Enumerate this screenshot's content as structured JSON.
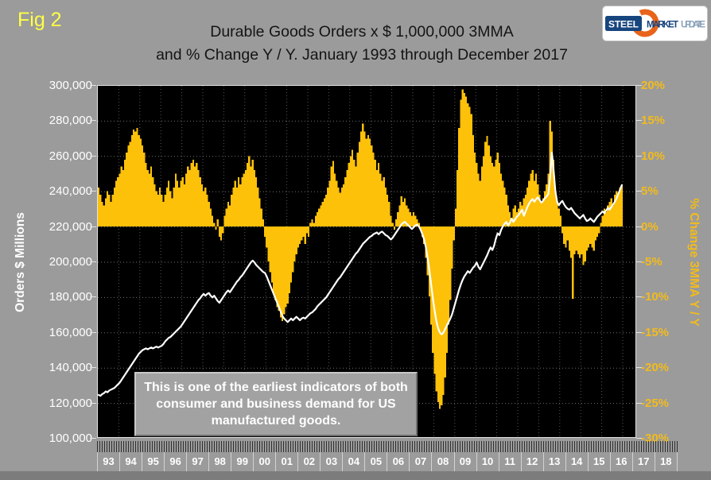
{
  "fig_label": "Fig 2",
  "title_line1": "Durable Goods Orders x $ 1,000,000 3MMA",
  "title_line2": "and % Change Y / Y. January 1993 through December 2017",
  "logo": {
    "steel": "STEEL",
    "market": "MARKET",
    "update": "UPDATE"
  },
  "annotation": "This is one of the earliest indicators of both consumer and business demand for US manufactured goods.",
  "left_axis": {
    "title": "Orders $ Millions",
    "labels": [
      "300,000",
      "280,000",
      "260,000",
      "240,000",
      "220,000",
      "200,000",
      "180,000",
      "160,000",
      "140,000",
      "120,000",
      "100,000"
    ]
  },
  "right_axis": {
    "title": "% Change 3MMA Y / Y",
    "labels": [
      "20%",
      "15%",
      "10%",
      "5%",
      "0%",
      "-5%",
      "-10%",
      "-15%",
      "-20%",
      "-25%",
      "-30%"
    ]
  },
  "x_axis": {
    "labels": [
      "93",
      "94",
      "95",
      "96",
      "97",
      "98",
      "99",
      "00",
      "01",
      "02",
      "03",
      "04",
      "05",
      "06",
      "07",
      "08",
      "09",
      "10",
      "11",
      "12",
      "13",
      "14",
      "15",
      "16",
      "17",
      "18"
    ]
  },
  "colors": {
    "background": "#9b9b9b",
    "plot_background": "#000000",
    "bar": "#fdc109",
    "line": "#ffffff",
    "right_axis_text": "#f2bb1d",
    "fig_label": "#ffff45",
    "grid_h": "#6f6f6f",
    "grid_v": "#575757"
  },
  "chart_data": {
    "type": "bar",
    "title": "Durable Goods Orders x $ 1,000,000 3MMA and % Change Y / Y",
    "x_start": "1993-01",
    "x_end": "2017-12",
    "frequency": "monthly",
    "left_axis_range": [
      100000,
      300000
    ],
    "right_axis_range_pct": [
      -30,
      20
    ],
    "grid": true,
    "series": [
      {
        "name": "% Change 3MMA Y / Y",
        "type": "bar",
        "axis": "right",
        "unit": "percent"
      },
      {
        "name": "Durable Goods Orders 3MMA",
        "type": "line",
        "axis": "left",
        "unit": "$ millions"
      }
    ],
    "pct_by_year": {
      "1993": [
        5.5,
        4.5,
        3.5,
        3.0,
        4.0,
        5.0,
        4.5,
        3.5,
        4.5,
        5.5,
        6.5,
        7.0
      ],
      "1994": [
        7.5,
        8.5,
        8.0,
        9.5,
        10.5,
        11.5,
        12.0,
        13.0,
        13.8,
        13.5,
        14.0,
        13.0
      ],
      "1995": [
        12.5,
        11.5,
        10.5,
        9.0,
        8.0,
        7.5,
        8.5,
        7.0,
        6.0,
        5.0,
        4.5,
        5.5
      ],
      "1996": [
        4.5,
        3.5,
        4.5,
        5.5,
        6.5,
        5.0,
        4.0,
        5.5,
        7.5,
        6.5,
        5.5,
        6.5
      ],
      "1997": [
        7.0,
        6.0,
        7.5,
        8.5,
        8.0,
        9.0,
        9.5,
        8.5,
        9.0,
        8.0,
        7.0,
        6.0
      ],
      "1998": [
        5.0,
        5.5,
        4.5,
        3.5,
        2.5,
        1.5,
        0.5,
        -0.5,
        1.0,
        -1.5,
        -2.0,
        -1.0
      ],
      "1999": [
        1.5,
        2.5,
        3.5,
        3.0,
        4.5,
        5.5,
        6.5,
        5.5,
        7.0,
        6.0,
        7.0,
        7.5
      ],
      "2000": [
        8.0,
        9.0,
        10.0,
        8.5,
        9.5,
        8.0,
        7.0,
        5.5,
        4.0,
        2.5,
        1.0,
        -1.5
      ],
      "2001": [
        -3.0,
        -5.0,
        -6.5,
        -8.0,
        -9.5,
        -10.5,
        -11.5,
        -12.0,
        -13.0,
        -13.5,
        -12.5,
        -11.5
      ],
      "2002": [
        -11.0,
        -9.5,
        -8.0,
        -6.5,
        -5.0,
        -4.0,
        -3.0,
        -2.5,
        -2.0,
        -1.5,
        -2.5,
        -1.0
      ],
      "2003": [
        -1.5,
        0.5,
        1.0,
        0.5,
        1.5,
        2.0,
        2.5,
        3.0,
        3.5,
        4.0,
        4.5,
        5.5
      ],
      "2004": [
        6.5,
        8.5,
        9.3,
        7.5,
        6.5,
        5.5,
        4.8,
        5.5,
        6.0,
        7.0,
        8.0,
        9.0
      ],
      "2005": [
        10.0,
        10.9,
        9.5,
        8.5,
        10.5,
        12.0,
        13.5,
        14.6,
        13.5,
        12.5,
        13.0,
        12.5
      ],
      "2006": [
        11.5,
        10.5,
        9.5,
        8.0,
        9.0,
        7.5,
        6.5,
        7.0,
        5.5,
        4.5,
        3.5,
        1.5
      ],
      "2007": [
        0.5,
        -0.5,
        1.0,
        2.0,
        3.0,
        4.3,
        3.5,
        4.0,
        3.0,
        2.5,
        2.0,
        1.5
      ],
      "2008": [
        2.0,
        1.5,
        1.0,
        0.5,
        -0.5,
        -1.5,
        -2.5,
        -4.5,
        -7.0,
        -10.0,
        -14.0,
        -18.0
      ],
      "2009": [
        -21.0,
        -23.5,
        -25.0,
        -26.0,
        -25.5,
        -24.0,
        -21.5,
        -18.0,
        -14.0,
        -10.5,
        -6.0,
        -2.0
      ],
      "2010": [
        2.5,
        8.0,
        14.0,
        18.0,
        19.5,
        19.0,
        18.5,
        17.5,
        17.0,
        16.0,
        13.0,
        10.5
      ],
      "2011": [
        9.0,
        7.5,
        6.5,
        8.5,
        10.0,
        12.0,
        12.9,
        11.5,
        10.0,
        9.0,
        8.5,
        9.5
      ],
      "2012": [
        10.5,
        9.0,
        7.5,
        6.5,
        5.5,
        4.5,
        3.0,
        2.0,
        1.0,
        2.5,
        3.0,
        2.0
      ],
      "2013": [
        2.5,
        3.5,
        3.0,
        4.0,
        4.5,
        5.5,
        6.5,
        7.5,
        8.0,
        6.5,
        7.5,
        6.0
      ],
      "2014": [
        4.5,
        3.5,
        4.0,
        5.0,
        6.0,
        7.5,
        15.0,
        13.5,
        9.5,
        5.0,
        3.5,
        2.5
      ],
      "2015": [
        1.5,
        -1.0,
        -2.5,
        -3.0,
        -2.0,
        -3.5,
        -4.5,
        -10.3,
        -4.0,
        -3.5,
        -4.0,
        -4.5
      ],
      "2016": [
        -4.0,
        -5.5,
        -5.0,
        -3.5,
        -3.0,
        -2.5,
        -3.0,
        -3.5,
        -2.0,
        -1.5,
        -1.0,
        0.5
      ],
      "2017": [
        1.5,
        2.5,
        2.0,
        3.0,
        3.5,
        4.0,
        3.0,
        4.5,
        5.0,
        4.5,
        5.5,
        5.8
      ]
    },
    "orders_by_year": {
      "1993": [
        124000,
        123500,
        124500,
        125000,
        126000,
        125500,
        126500,
        127000,
        127500,
        128000,
        129000,
        130000
      ],
      "1994": [
        131000,
        132500,
        134000,
        135500,
        137000,
        138500,
        140000,
        141500,
        143000,
        144500,
        146000,
        147500
      ],
      "1995": [
        148500,
        149500,
        150000,
        150500,
        150000,
        150500,
        151000,
        150500,
        151000,
        151500,
        151000,
        151500
      ],
      "1996": [
        152000,
        153000,
        154500,
        155500,
        156500,
        157000,
        158000,
        159000,
        160000,
        161000,
        162000,
        163000
      ],
      "1997": [
        164500,
        166000,
        167500,
        169000,
        170500,
        172000,
        173500,
        175000,
        176500,
        178000,
        179000,
        180500
      ],
      "1998": [
        181500,
        180500,
        181500,
        182000,
        180500,
        179500,
        180500,
        179000,
        177500,
        176500,
        178000,
        179500
      ],
      "1999": [
        181000,
        182500,
        183500,
        182500,
        184000,
        185500,
        187000,
        188500,
        189500,
        191000,
        192000,
        193500
      ],
      "2000": [
        195000,
        196500,
        198000,
        199500,
        200500,
        199500,
        198000,
        197000,
        196000,
        195000,
        194000,
        193500
      ],
      "2001": [
        191500,
        189000,
        186500,
        184000,
        181500,
        179000,
        176500,
        174000,
        171500,
        169000,
        167500,
        166500
      ],
      "2002": [
        165500,
        166500,
        167500,
        166500,
        167500,
        168500,
        167500,
        166500,
        167500,
        168000,
        167500,
        168500
      ],
      "2003": [
        169500,
        170500,
        171000,
        172000,
        173000,
        174500,
        175500,
        176500,
        177500,
        178500,
        179500,
        181000
      ],
      "2004": [
        182500,
        184000,
        185500,
        187000,
        188500,
        190000,
        191000,
        192500,
        194000,
        195500,
        197000,
        198500
      ],
      "2005": [
        200000,
        201500,
        203000,
        204500,
        205500,
        207000,
        208500,
        210000,
        211000,
        212000,
        213000,
        214000
      ],
      "2006": [
        214500,
        215500,
        216000,
        216500,
        215500,
        216500,
        217000,
        216000,
        215000,
        214500,
        213500,
        212500
      ],
      "2007": [
        213500,
        215000,
        216500,
        218000,
        219500,
        221000,
        222000,
        222500,
        221500,
        220500,
        219500,
        218500
      ],
      "2008": [
        219500,
        220500,
        221000,
        220000,
        218000,
        215500,
        212500,
        208000,
        202000,
        195000,
        187000,
        179000
      ],
      "2009": [
        172000,
        166000,
        162000,
        159500,
        158500,
        159500,
        161500,
        163500,
        165500,
        167500,
        170000,
        173500
      ],
      "2010": [
        177000,
        180500,
        184000,
        187000,
        189500,
        191500,
        193000,
        194500,
        193500,
        195000,
        196500,
        197500
      ],
      "2011": [
        199500,
        197000,
        195500,
        197500,
        199500,
        201500,
        203500,
        206000,
        208000,
        206500,
        209000,
        213000
      ],
      "2012": [
        216000,
        215000,
        218000,
        220000,
        221500,
        222500,
        220500,
        222000,
        224500,
        222500,
        224000,
        225500
      ],
      "2013": [
        226500,
        228000,
        229500,
        226000,
        228500,
        231000,
        233000,
        234500,
        235500,
        234000,
        235500,
        236500
      ],
      "2014": [
        235000,
        233500,
        234500,
        236000,
        237000,
        238500,
        248000,
        262000,
        252000,
        240000,
        234000,
        232000
      ],
      "2015": [
        233500,
        234500,
        232500,
        231000,
        230000,
        229500,
        230500,
        229000,
        227500,
        226500,
        225500,
        224500
      ],
      "2016": [
        225500,
        226500,
        224500,
        223000,
        223500,
        224500,
        223500,
        222500,
        224000,
        225500,
        226500,
        227500
      ],
      "2017": [
        228500,
        227500,
        229000,
        230500,
        229500,
        231000,
        232500,
        234000,
        236000,
        238500,
        241000,
        243500
      ]
    }
  }
}
